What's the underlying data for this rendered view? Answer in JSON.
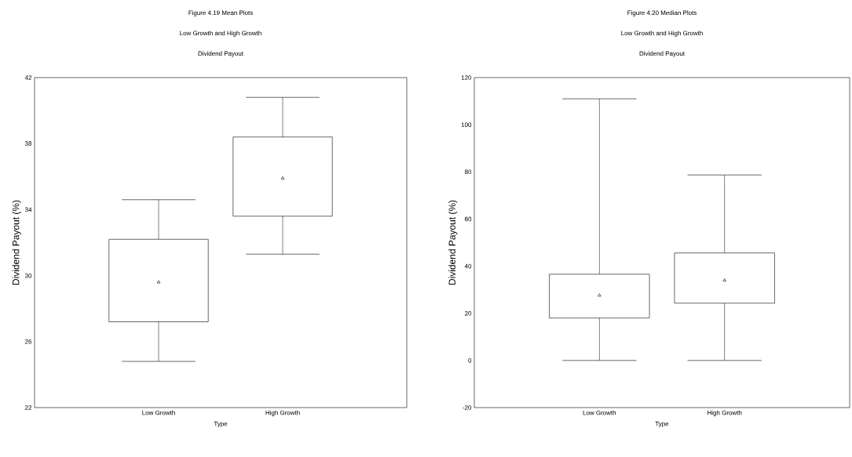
{
  "chart_data": [
    {
      "type": "box",
      "title": "Figure 4.19 Mean Plots",
      "subtitle": "Low Growth and High Growth",
      "annotations": [
        "Dividend Payout"
      ],
      "xlabel": "Type",
      "ylabel": "Dividend Payout (%)",
      "categories": [
        "Low Growth",
        "High Growth"
      ],
      "boxes": [
        {
          "low": 24.8,
          "q1": 27.2,
          "median": 29.6,
          "q3": 32.2,
          "high": 34.6
        },
        {
          "low": 31.3,
          "q1": 33.6,
          "median": 35.9,
          "q3": 38.4,
          "high": 40.8
        }
      ],
      "marker": "triangle",
      "ylim": [
        22,
        42
      ],
      "yticks": [
        22,
        26,
        30,
        34,
        38,
        42
      ]
    },
    {
      "type": "box",
      "title": "Figure 4.20 Median Plots",
      "subtitle": "Low Growth and High Growth",
      "annotations": [
        "Dividend Payout"
      ],
      "xlabel": "Type",
      "ylabel": "Dividend Payout (%)",
      "categories": [
        "Low Growth",
        "High Growth"
      ],
      "boxes": [
        {
          "low": 0,
          "q1": 18,
          "median": 27.6,
          "q3": 36.6,
          "high": 111
        },
        {
          "low": 0,
          "q1": 24.3,
          "median": 34,
          "q3": 45.6,
          "high": 78.7
        }
      ],
      "marker": "triangle",
      "ylim": [
        -20,
        120
      ],
      "yticks": [
        -20,
        0,
        20,
        40,
        60,
        80,
        100,
        120
      ]
    }
  ]
}
